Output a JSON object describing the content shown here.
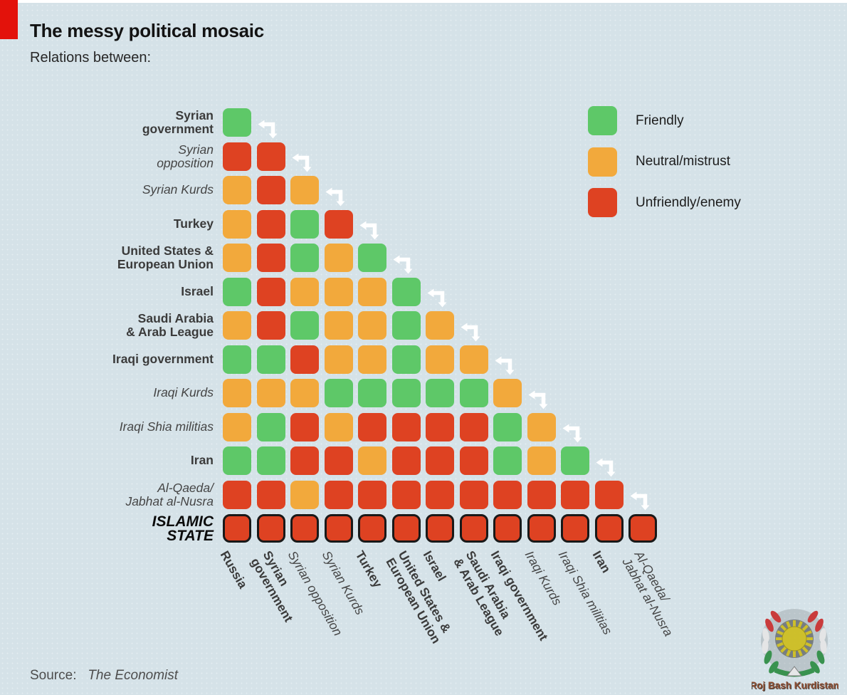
{
  "header": {
    "title": "The messy political mosaic",
    "subtitle": "Relations between:"
  },
  "legend": {
    "items": [
      {
        "id": "friendly",
        "label": "Friendly",
        "color": "#5ec868"
      },
      {
        "id": "neutral",
        "label": "Neutral/mistrust",
        "color": "#f2a93c"
      },
      {
        "id": "unfriendly",
        "label": "Unfriendly/enemy",
        "color": "#de4222"
      }
    ]
  },
  "chart_data": {
    "type": "heatmap",
    "title": "The messy political mosaic",
    "subtitle": "Relations between:",
    "legend_position": "top-right",
    "background_color": "#d5e2e8",
    "value_colors": {
      "friendly": "#5ec868",
      "neutral": "#f2a93c",
      "unfriendly": "#de4222"
    },
    "value_labels": {
      "friendly": "Friendly",
      "neutral": "Neutral/mistrust",
      "unfriendly": "Unfriendly/enemy"
    },
    "columns": [
      {
        "label": "Russia",
        "lines": [
          "Russia"
        ],
        "style": "bold"
      },
      {
        "label": "Syrian government",
        "lines": [
          "Syrian",
          "government"
        ],
        "style": "bold"
      },
      {
        "label": "Syrian opposition",
        "lines": [
          "Syrian opposition"
        ],
        "style": "italic"
      },
      {
        "label": "Syrian Kurds",
        "lines": [
          "Syrian Kurds"
        ],
        "style": "italic"
      },
      {
        "label": "Turkey",
        "lines": [
          "Turkey"
        ],
        "style": "bold"
      },
      {
        "label": "United States & European Union",
        "lines": [
          "United States &",
          "European Union"
        ],
        "style": "bold"
      },
      {
        "label": "Israel",
        "lines": [
          "Israel"
        ],
        "style": "bold"
      },
      {
        "label": "Saudi Arabia & Arab League",
        "lines": [
          "Saudi Arabia",
          "& Arab League"
        ],
        "style": "bold"
      },
      {
        "label": "Iraqi government",
        "lines": [
          "Iraqi government"
        ],
        "style": "bold"
      },
      {
        "label": "Iraqi Kurds",
        "lines": [
          "Iraqi Kurds"
        ],
        "style": "italic"
      },
      {
        "label": "Iraqi Shia militias",
        "lines": [
          "Iraqi Shia militias"
        ],
        "style": "italic"
      },
      {
        "label": "Iran",
        "lines": [
          "Iran"
        ],
        "style": "bold"
      },
      {
        "label": "Al-Qaeda/Jabhat al-Nusra",
        "lines": [
          "Al-Qaeda/",
          "Jabhat al-Nusra"
        ],
        "style": "italic"
      }
    ],
    "rows": [
      {
        "label": "Syrian government",
        "lines": [
          "Syrian",
          "government"
        ],
        "style": "bold",
        "relations": [
          "friendly"
        ]
      },
      {
        "label": "Syrian opposition",
        "lines": [
          "Syrian",
          "opposition"
        ],
        "style": "italic",
        "relations": [
          "unfriendly",
          "unfriendly"
        ]
      },
      {
        "label": "Syrian Kurds",
        "lines": [
          "Syrian Kurds"
        ],
        "style": "italic",
        "relations": [
          "neutral",
          "unfriendly",
          "neutral"
        ]
      },
      {
        "label": "Turkey",
        "lines": [
          "Turkey"
        ],
        "style": "bold",
        "relations": [
          "neutral",
          "unfriendly",
          "friendly",
          "unfriendly"
        ]
      },
      {
        "label": "United States & European Union",
        "lines": [
          "United States &",
          "European Union"
        ],
        "style": "bold",
        "relations": [
          "neutral",
          "unfriendly",
          "friendly",
          "neutral",
          "friendly"
        ]
      },
      {
        "label": "Israel",
        "lines": [
          "Israel"
        ],
        "style": "bold",
        "relations": [
          "friendly",
          "unfriendly",
          "neutral",
          "neutral",
          "neutral",
          "friendly"
        ]
      },
      {
        "label": "Saudi Arabia & Arab League",
        "lines": [
          "Saudi Arabia",
          "& Arab League"
        ],
        "style": "bold",
        "relations": [
          "neutral",
          "unfriendly",
          "friendly",
          "neutral",
          "neutral",
          "friendly",
          "neutral"
        ]
      },
      {
        "label": "Iraqi government",
        "lines": [
          "Iraqi government"
        ],
        "style": "bold",
        "relations": [
          "friendly",
          "friendly",
          "unfriendly",
          "neutral",
          "neutral",
          "friendly",
          "neutral",
          "neutral"
        ]
      },
      {
        "label": "Iraqi Kurds",
        "lines": [
          "Iraqi Kurds"
        ],
        "style": "italic",
        "relations": [
          "neutral",
          "neutral",
          "neutral",
          "friendly",
          "friendly",
          "friendly",
          "friendly",
          "friendly",
          "neutral"
        ]
      },
      {
        "label": "Iraqi Shia militias",
        "lines": [
          "Iraqi Shia militias"
        ],
        "style": "italic",
        "relations": [
          "neutral",
          "friendly",
          "unfriendly",
          "neutral",
          "unfriendly",
          "unfriendly",
          "unfriendly",
          "unfriendly",
          "friendly",
          "neutral"
        ]
      },
      {
        "label": "Iran",
        "lines": [
          "Iran"
        ],
        "style": "bold",
        "relations": [
          "friendly",
          "friendly",
          "unfriendly",
          "unfriendly",
          "neutral",
          "unfriendly",
          "unfriendly",
          "unfriendly",
          "friendly",
          "neutral",
          "friendly"
        ]
      },
      {
        "label": "Al-Qaeda/Jabhat al-Nusra",
        "lines": [
          "Al-Qaeda/",
          "Jabhat al-Nusra"
        ],
        "style": "italic",
        "relations": [
          "unfriendly",
          "unfriendly",
          "neutral",
          "unfriendly",
          "unfriendly",
          "unfriendly",
          "unfriendly",
          "unfriendly",
          "unfriendly",
          "unfriendly",
          "unfriendly",
          "unfriendly"
        ]
      },
      {
        "label": "ISLAMIC STATE",
        "lines": [
          "ISLAMIC",
          "STATE"
        ],
        "style": "heavy-italic",
        "outlined": true,
        "relations": [
          "unfriendly",
          "unfriendly",
          "unfriendly",
          "unfriendly",
          "unfriendly",
          "unfriendly",
          "unfriendly",
          "unfriendly",
          "unfriendly",
          "unfriendly",
          "unfriendly",
          "unfriendly",
          "unfriendly"
        ]
      }
    ]
  },
  "footer": {
    "source_label": "Source:",
    "source_value": "The Economist"
  },
  "watermark": {
    "caption": "Roj Bash Kurdistan"
  }
}
